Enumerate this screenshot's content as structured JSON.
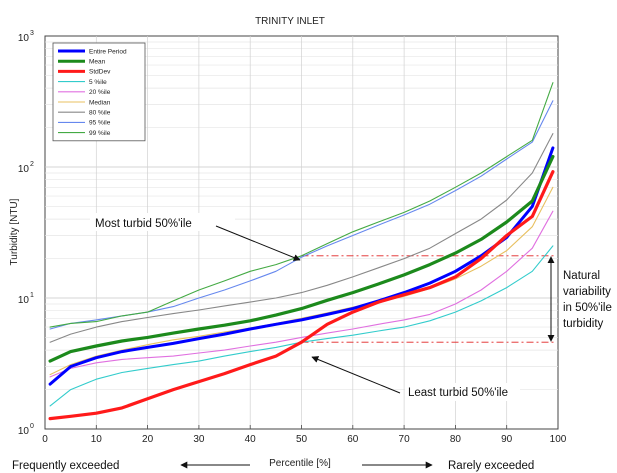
{
  "chart_data": {
    "type": "line",
    "title": "TRINITY INLET",
    "xlabel": "Percentile [%]",
    "ylabel": "Turbidity [NTU]",
    "xlim": [
      0,
      100
    ],
    "ylim": [
      1,
      1000
    ],
    "yscale": "log",
    "grid": true,
    "legend_position": "top-left",
    "x_ticks": [
      "0",
      "10",
      "20",
      "30",
      "40",
      "50",
      "60",
      "70",
      "80",
      "90",
      "100"
    ],
    "y_ticks": [
      {
        "value": 1,
        "label": "10",
        "exp": "0"
      },
      {
        "value": 10,
        "label": "10",
        "exp": "1"
      },
      {
        "value": 100,
        "label": "10",
        "exp": "2"
      },
      {
        "value": 1000,
        "label": "10",
        "exp": "3"
      }
    ],
    "x": [
      1,
      5,
      10,
      15,
      20,
      25,
      30,
      35,
      40,
      45,
      50,
      55,
      60,
      65,
      70,
      75,
      80,
      85,
      90,
      95,
      99
    ],
    "series": [
      {
        "name": "Entire Period",
        "color": "#0000ff",
        "width": 3,
        "values": [
          2.2,
          3.0,
          3.5,
          3.9,
          4.2,
          4.5,
          4.9,
          5.3,
          5.8,
          6.3,
          6.8,
          7.5,
          8.3,
          9.5,
          11.0,
          13.0,
          16.0,
          21.0,
          29.0,
          50.0,
          140.0
        ]
      },
      {
        "name": "Mean",
        "color": "#1c8a1c",
        "width": 3.2,
        "values": [
          3.3,
          3.9,
          4.3,
          4.7,
          5.0,
          5.4,
          5.8,
          6.2,
          6.7,
          7.4,
          8.3,
          9.6,
          11.0,
          12.8,
          15.0,
          18.0,
          22.0,
          28.0,
          38.0,
          55.0,
          120.0
        ]
      },
      {
        "name": "StdDev",
        "color": "#ff1a1a",
        "width": 3.2,
        "values": [
          1.2,
          1.25,
          1.32,
          1.45,
          1.7,
          2.0,
          2.3,
          2.65,
          3.1,
          3.6,
          4.6,
          6.3,
          7.8,
          9.3,
          10.6,
          12.0,
          14.5,
          20.0,
          30.0,
          42.0,
          92.0
        ]
      },
      {
        "name": "5 %ile",
        "color": "#33cccc",
        "width": 1.1,
        "values": [
          1.5,
          2.0,
          2.4,
          2.7,
          2.9,
          3.1,
          3.3,
          3.6,
          3.9,
          4.2,
          4.6,
          4.9,
          5.2,
          5.6,
          6.0,
          6.7,
          7.8,
          9.5,
          12.0,
          16.0,
          25.0
        ]
      },
      {
        "name": "20 %ile",
        "color": "#e070e0",
        "width": 1.1,
        "values": [
          2.5,
          2.9,
          3.2,
          3.4,
          3.5,
          3.6,
          3.8,
          4.0,
          4.3,
          4.6,
          5.0,
          5.4,
          5.8,
          6.3,
          6.8,
          7.5,
          9.0,
          11.5,
          16.0,
          24.0,
          46.0
        ]
      },
      {
        "name": "Median",
        "color": "#e8c060",
        "width": 1.1,
        "values": [
          2.6,
          3.1,
          3.6,
          4.0,
          4.4,
          4.8,
          5.1,
          5.5,
          5.9,
          6.4,
          7.0,
          7.7,
          8.5,
          9.3,
          10.3,
          11.8,
          14.0,
          17.5,
          23.0,
          35.0,
          70.0
        ]
      },
      {
        "name": "80 %ile",
        "color": "#888888",
        "width": 1.1,
        "values": [
          4.6,
          5.3,
          6.0,
          6.6,
          7.1,
          7.6,
          8.1,
          8.7,
          9.3,
          10.0,
          11.0,
          12.5,
          14.5,
          17.0,
          20.0,
          24.0,
          31.0,
          40.0,
          56.0,
          90.0,
          180.0
        ]
      },
      {
        "name": "95 %ile",
        "color": "#6688ee",
        "width": 1.1,
        "values": [
          5.8,
          6.4,
          6.8,
          7.3,
          7.8,
          8.6,
          10.0,
          11.5,
          13.5,
          16.0,
          20.5,
          25.0,
          30.0,
          36.0,
          43.0,
          52.0,
          66.0,
          85.0,
          115.0,
          155.0,
          320.0
        ]
      },
      {
        "name": "99 %ile",
        "color": "#44aa44",
        "width": 1.1,
        "values": [
          6.0,
          6.4,
          6.6,
          7.3,
          7.8,
          9.5,
          11.5,
          13.5,
          16.0,
          18.0,
          21.0,
          26.0,
          32.0,
          38.0,
          45.0,
          55.0,
          70.0,
          90.0,
          120.0,
          160.0,
          440.0
        ]
      }
    ],
    "annotations": {
      "most_turbid": {
        "text": "Most turbid 50%'ile",
        "value": 21
      },
      "least_turbid": {
        "text": "Least turbid 50%'ile",
        "value": 4.6
      },
      "natural_variability": [
        "Natural",
        "variability",
        "in 50%'ile",
        "turbidity"
      ],
      "frequently_exceeded": "Frequently exceeded",
      "rarely_exceeded": "Rarely exceeded"
    }
  }
}
